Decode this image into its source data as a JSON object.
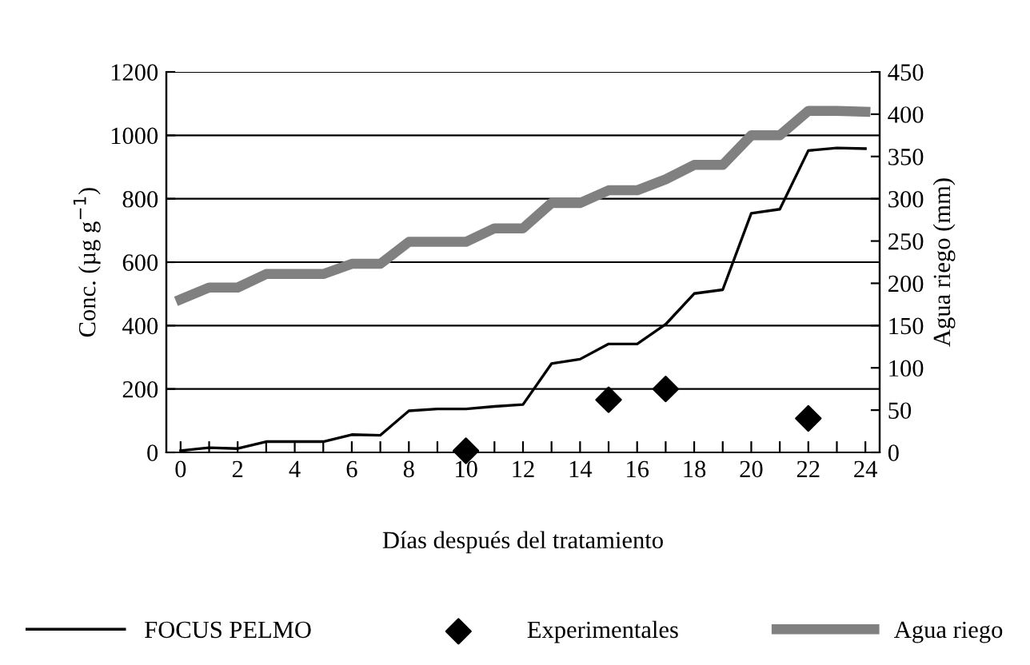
{
  "chart_data": {
    "type": "line",
    "xlabel": "Días después del tratamiento",
    "ylabel": "Conc. (µg g$^{−1}$)",
    "y2label": "Agua riego (mm)",
    "xlim": [
      -0.5,
      24.5
    ],
    "xticks": [
      {
        "value": 0,
        "label": "0"
      },
      {
        "value": 1,
        "label": null
      },
      {
        "value": 2,
        "label": "2"
      },
      {
        "value": 3,
        "label": null
      },
      {
        "value": 4,
        "label": "4"
      },
      {
        "value": 5,
        "label": null
      },
      {
        "value": 6,
        "label": "6"
      },
      {
        "value": 7,
        "label": null
      },
      {
        "value": 8,
        "label": "8"
      },
      {
        "value": 9,
        "label": null
      },
      {
        "value": 10,
        "label": "10"
      },
      {
        "value": 11,
        "label": null
      },
      {
        "value": 12,
        "label": "12"
      },
      {
        "value": 13,
        "label": null
      },
      {
        "value": 14,
        "label": "14"
      },
      {
        "value": 15,
        "label": null
      },
      {
        "value": 16,
        "label": "16"
      },
      {
        "value": 17,
        "label": null
      },
      {
        "value": 18,
        "label": "18"
      },
      {
        "value": 19,
        "label": null
      },
      {
        "value": 20,
        "label": "20"
      },
      {
        "value": 21,
        "label": null
      },
      {
        "value": 22,
        "label": "22"
      },
      {
        "value": 23,
        "label": null
      },
      {
        "value": 24,
        "label": "24"
      }
    ],
    "ylim": [
      0,
      1200
    ],
    "yticks": [
      0,
      200,
      400,
      600,
      800,
      1000,
      1200
    ],
    "y2lim": [
      0,
      450
    ],
    "y2ticks": [
      0,
      50,
      100,
      150,
      200,
      250,
      300,
      350,
      400,
      450
    ],
    "grid": "y",
    "legend": "bottom",
    "series": [
      {
        "name": "FOCUS PELMO",
        "color": "#000000",
        "x": [
          0,
          1,
          2,
          3,
          4,
          5,
          6,
          7,
          8,
          9,
          10,
          11,
          12,
          13,
          14,
          15,
          16,
          17,
          18,
          19,
          20,
          21,
          22,
          23,
          24
        ],
        "values": [
          5,
          15,
          12,
          34,
          34,
          34,
          56,
          54,
          131,
          137,
          137,
          145,
          151,
          280,
          294,
          342,
          342,
          404,
          501,
          513,
          754,
          767,
          952,
          960,
          958
        ]
      },
      {
        "name": "Experimentales",
        "type": "scatter",
        "marker": "diamond",
        "color": "#000000",
        "x": [
          10,
          15,
          17,
          22
        ],
        "values": [
          5,
          166,
          200,
          107
        ]
      },
      {
        "name": "Agua riego",
        "axis": "y2",
        "color": "#808080",
        "x": [
          0,
          1,
          2,
          3,
          4,
          5,
          6,
          7,
          8,
          9,
          10,
          11,
          12,
          13,
          14,
          15,
          16,
          17,
          18,
          19,
          20,
          21,
          22,
          23,
          24
        ],
        "values": [
          181,
          195,
          195,
          211,
          211,
          211,
          223,
          223,
          249,
          249,
          249,
          265,
          265,
          295,
          295,
          310,
          310,
          323,
          340,
          340,
          375,
          375,
          404,
          404,
          403
        ]
      }
    ]
  }
}
